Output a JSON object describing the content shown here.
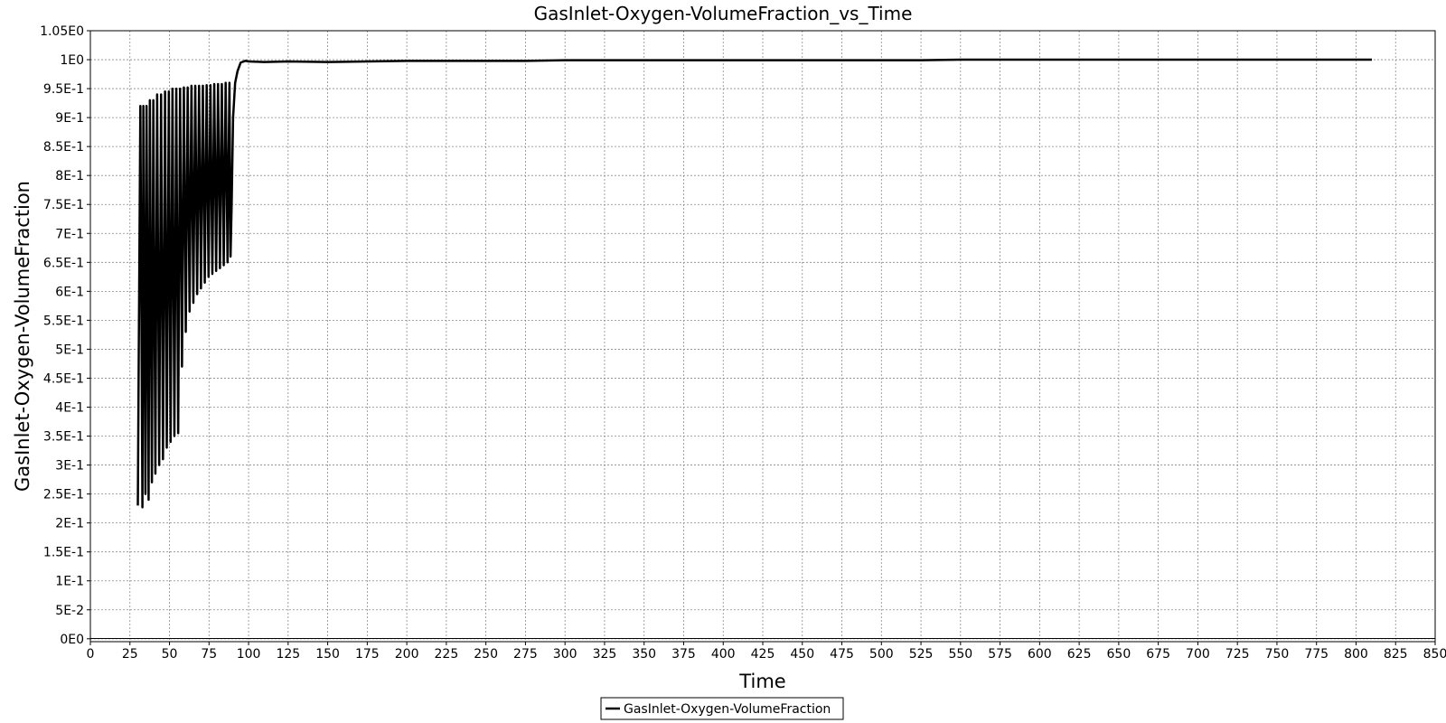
{
  "chart_data": {
    "type": "line",
    "title": "GasInlet-Oxygen-VolumeFraction_vs_Time",
    "xlabel": "Time",
    "ylabel": "GasInlet-Oxygen-VolumeFraction",
    "xlim": [
      0,
      850
    ],
    "ylim": [
      -0.005,
      1.05
    ],
    "x_ticks": [
      0,
      25,
      50,
      75,
      100,
      125,
      150,
      175,
      200,
      225,
      250,
      275,
      300,
      325,
      350,
      375,
      400,
      425,
      450,
      475,
      500,
      525,
      550,
      575,
      600,
      625,
      650,
      675,
      700,
      725,
      750,
      775,
      800,
      825,
      850
    ],
    "y_ticks": [
      {
        "value": 0,
        "label": "0E0"
      },
      {
        "value": 0.05,
        "label": "5E-2"
      },
      {
        "value": 0.1,
        "label": "1E-1"
      },
      {
        "value": 0.15,
        "label": "1.5E-1"
      },
      {
        "value": 0.2,
        "label": "2E-1"
      },
      {
        "value": 0.25,
        "label": "2.5E-1"
      },
      {
        "value": 0.3,
        "label": "3E-1"
      },
      {
        "value": 0.35,
        "label": "3.5E-1"
      },
      {
        "value": 0.4,
        "label": "4E-1"
      },
      {
        "value": 0.45,
        "label": "4.5E-1"
      },
      {
        "value": 0.5,
        "label": "5E-1"
      },
      {
        "value": 0.55,
        "label": "5.5E-1"
      },
      {
        "value": 0.6,
        "label": "6E-1"
      },
      {
        "value": 0.65,
        "label": "6.5E-1"
      },
      {
        "value": 0.7,
        "label": "7E-1"
      },
      {
        "value": 0.75,
        "label": "7.5E-1"
      },
      {
        "value": 0.8,
        "label": "8E-1"
      },
      {
        "value": 0.85,
        "label": "8.5E-1"
      },
      {
        "value": 0.9,
        "label": "9E-1"
      },
      {
        "value": 0.95,
        "label": "9.5E-1"
      },
      {
        "value": 1.0,
        "label": "1E0"
      },
      {
        "value": 1.05,
        "label": "1.05E0"
      }
    ],
    "grid": true,
    "legend_position": "bottom-center",
    "series": [
      {
        "name": "GasInlet-Oxygen-VolumeFraction",
        "color": "#000000",
        "x": [
          30,
          30.6,
          31.6,
          32.9,
          33.5,
          34.8,
          35.5,
          36.8,
          37.6,
          38.9,
          39.8,
          41.1,
          42.2,
          43.5,
          44.7,
          45.9,
          47.2,
          48.3,
          49.6,
          50.7,
          51.9,
          53.1,
          54.3,
          55.5,
          56.7,
          57.9,
          59.1,
          60.3,
          61.5,
          62.7,
          63.9,
          65.1,
          66.3,
          67.5,
          68.7,
          69.9,
          71.1,
          72.3,
          73.5,
          74.7,
          75.9,
          77.1,
          78.3,
          79.5,
          80.7,
          81.9,
          83.1,
          84.3,
          85.5,
          86.7,
          87.9,
          88.6,
          89.3,
          90.2,
          91.5,
          93,
          95,
          98,
          100,
          110,
          125,
          150,
          175,
          200,
          225,
          250,
          275,
          300,
          325,
          350,
          375,
          400,
          425,
          450,
          475,
          500,
          525,
          550,
          575,
          600,
          650,
          700,
          750,
          810
        ],
        "y": [
          0.23,
          0.5,
          0.92,
          0.227,
          0.92,
          0.25,
          0.92,
          0.24,
          0.93,
          0.27,
          0.93,
          0.285,
          0.94,
          0.3,
          0.94,
          0.31,
          0.945,
          0.33,
          0.945,
          0.34,
          0.95,
          0.35,
          0.95,
          0.355,
          0.95,
          0.47,
          0.952,
          0.53,
          0.952,
          0.565,
          0.955,
          0.58,
          0.955,
          0.595,
          0.955,
          0.605,
          0.955,
          0.615,
          0.956,
          0.625,
          0.956,
          0.63,
          0.958,
          0.635,
          0.958,
          0.64,
          0.958,
          0.645,
          0.96,
          0.65,
          0.96,
          0.66,
          0.75,
          0.9,
          0.96,
          0.98,
          0.995,
          0.998,
          0.997,
          0.996,
          0.997,
          0.996,
          0.997,
          0.998,
          0.998,
          0.998,
          0.998,
          0.999,
          0.999,
          0.999,
          0.999,
          0.999,
          0.999,
          0.999,
          0.999,
          0.999,
          0.999,
          1.0,
          1.0,
          1.0,
          1.0,
          1.0,
          1.0,
          1.0
        ]
      }
    ]
  }
}
